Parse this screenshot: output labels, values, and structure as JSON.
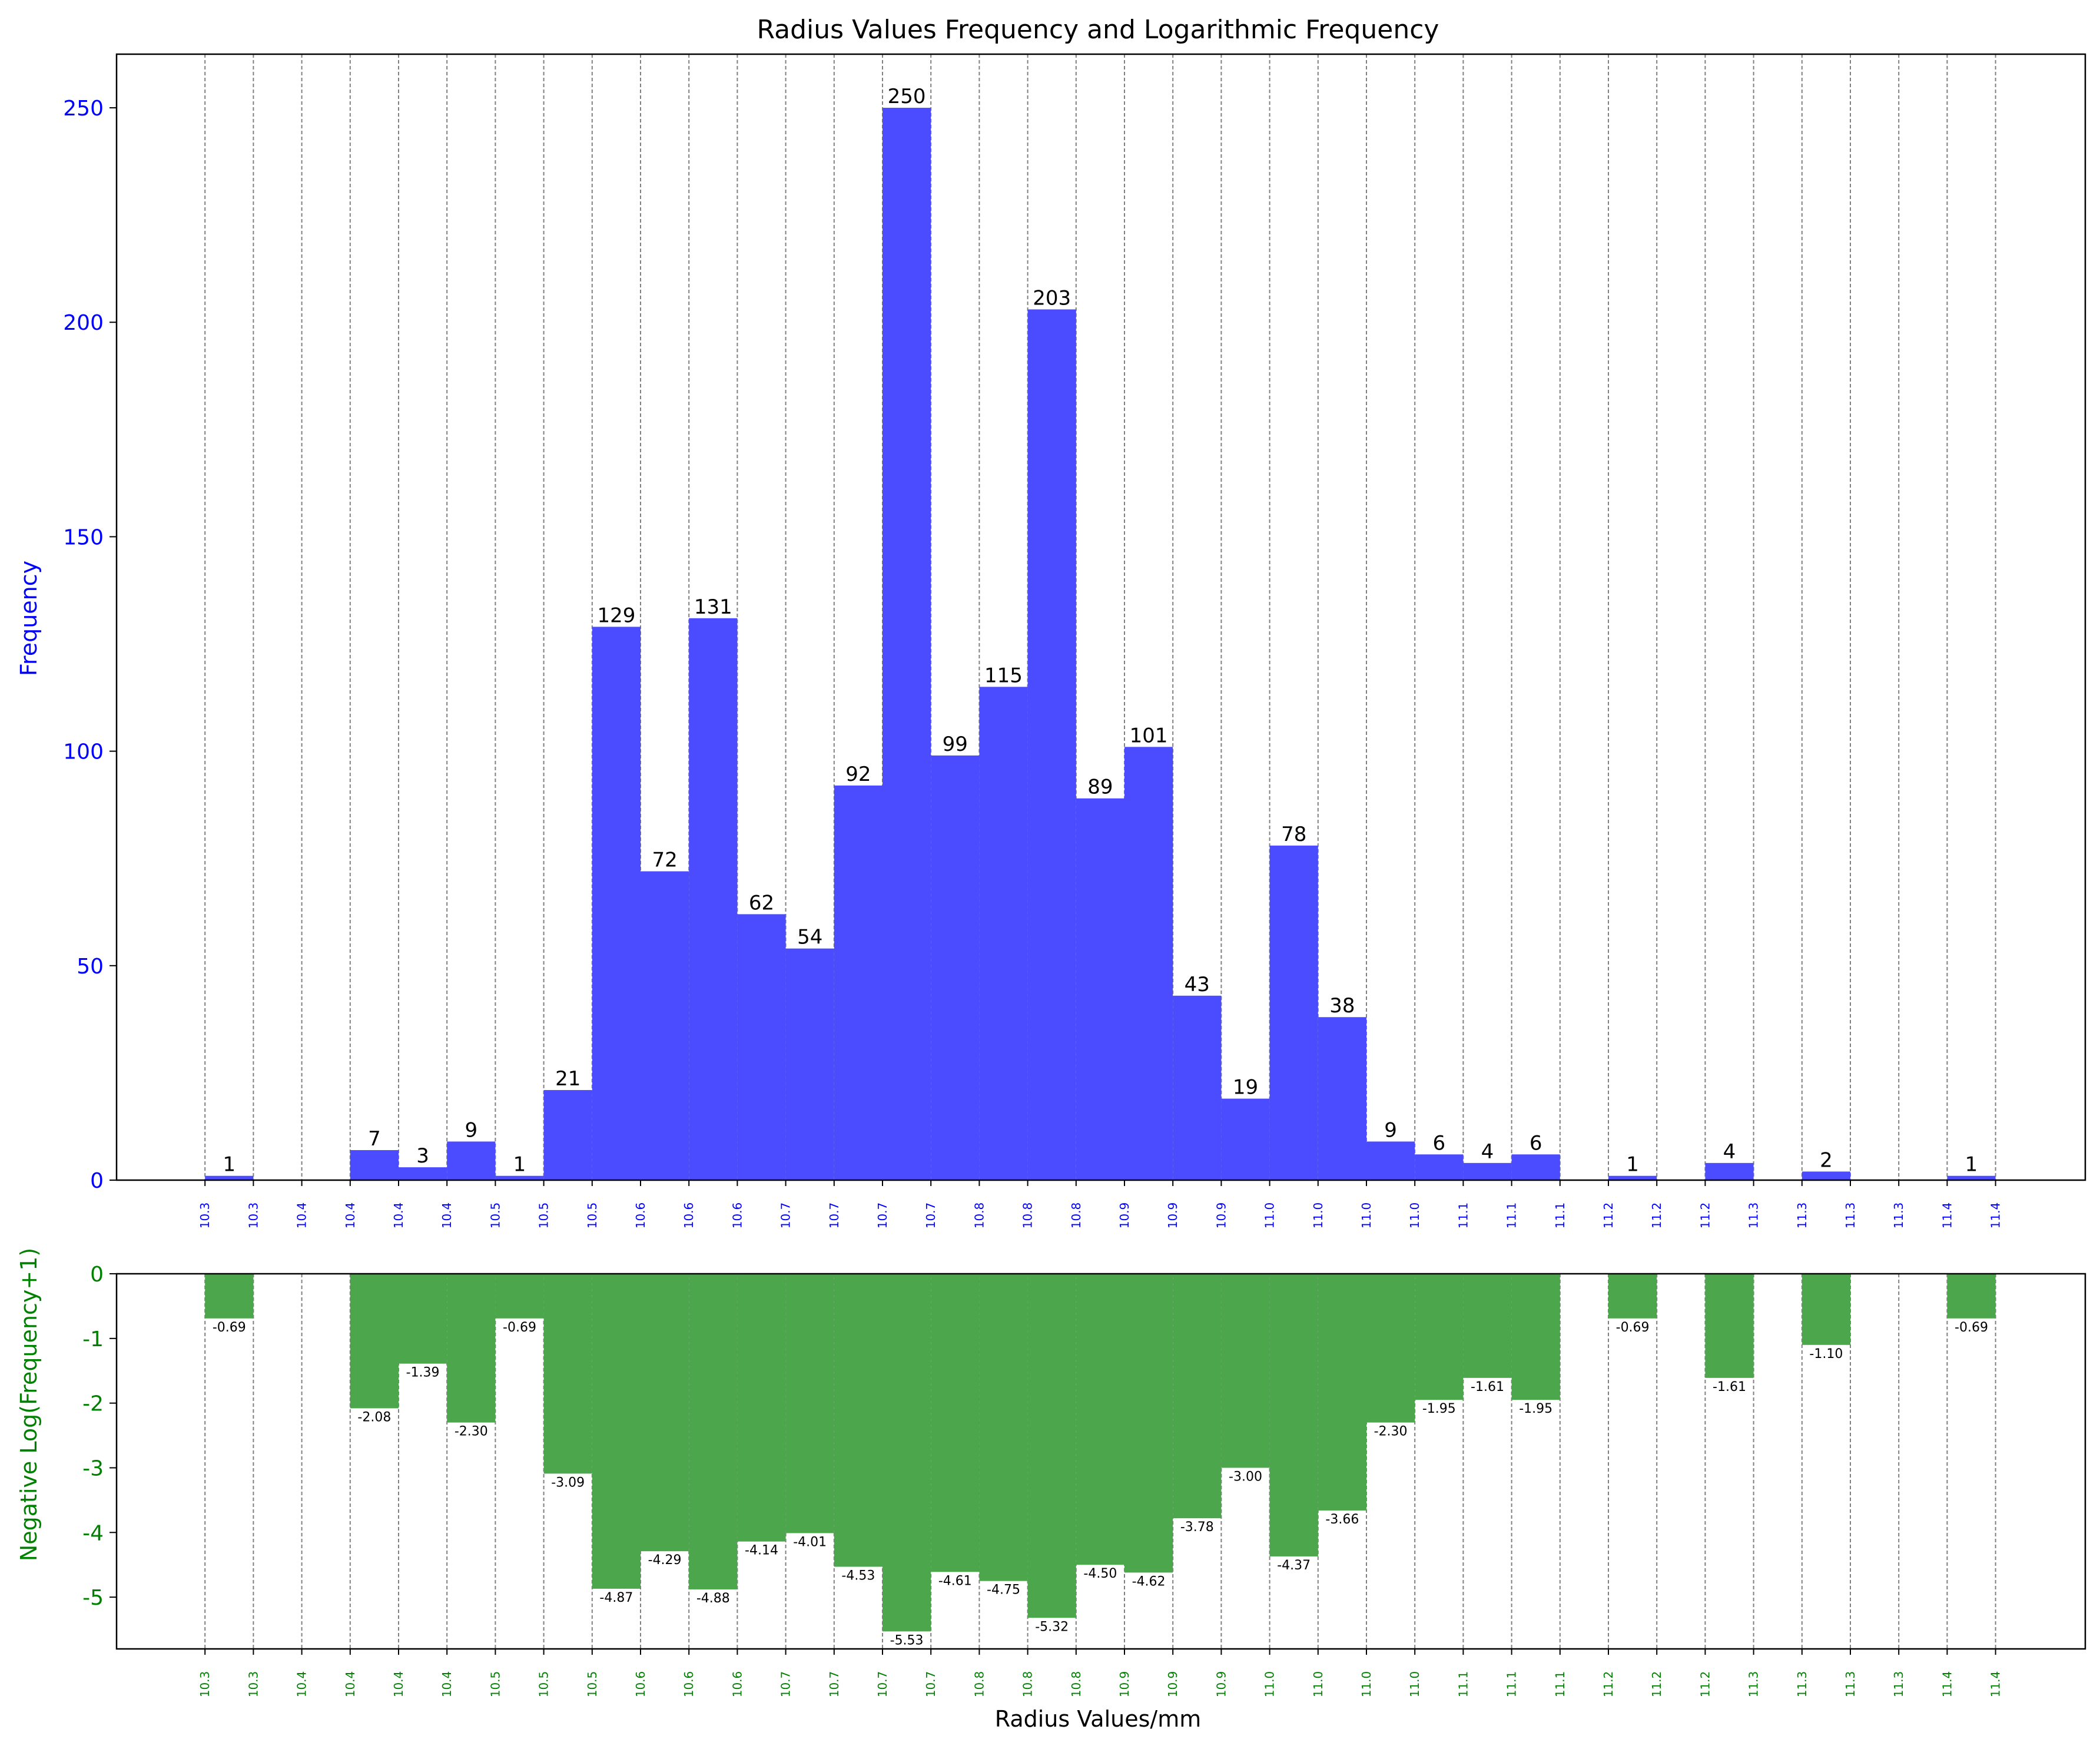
{
  "chart_data": [
    {
      "type": "bar",
      "title": "Radius Values Frequency and Logarithmic Frequency",
      "xlabel": "",
      "ylabel": "Frequency",
      "ylim": [
        0,
        262.5
      ],
      "yticks": [
        0,
        50,
        100,
        150,
        200,
        250
      ],
      "x_tick_labels": [
        "10.3",
        "10.3",
        "10.4",
        "10.4",
        "10.4",
        "10.4",
        "10.5",
        "10.5",
        "10.5",
        "10.6",
        "10.6",
        "10.6",
        "10.7",
        "10.7",
        "10.7",
        "10.7",
        "10.8",
        "10.8",
        "10.8",
        "10.9",
        "10.9",
        "10.9",
        "11.0",
        "11.0",
        "11.0",
        "11.0",
        "11.1",
        "11.1",
        "11.1",
        "11.2",
        "11.2",
        "11.2",
        "11.3",
        "11.3",
        "11.3",
        "11.3",
        "11.4",
        "11.4"
      ],
      "grid": "vertical dashed at bin edges",
      "values": [
        1,
        0,
        0,
        7,
        3,
        9,
        1,
        21,
        129,
        72,
        131,
        62,
        54,
        92,
        250,
        99,
        115,
        203,
        89,
        101,
        43,
        19,
        78,
        38,
        9,
        6,
        4,
        6,
        0,
        1,
        0,
        4,
        0,
        2,
        0,
        0,
        1
      ],
      "data_labels": [
        "1",
        "",
        "",
        "7",
        "3",
        "9",
        "1",
        "21",
        "129",
        "72",
        "131",
        "62",
        "54",
        "92",
        "250",
        "99",
        "115",
        "203",
        "89",
        "101",
        "43",
        "19",
        "78",
        "38",
        "9",
        "6",
        "4",
        "6",
        "",
        "1",
        "",
        "4",
        "",
        "2",
        "",
        "",
        "1"
      ],
      "colors": {
        "bars": "#4b4bff",
        "axis_labels": "#0000ff"
      }
    },
    {
      "type": "bar",
      "title": "",
      "xlabel": "Radius Values/mm",
      "ylabel": "Negative Log(Frequency+1)",
      "ylim": [
        -5.8,
        0
      ],
      "yticks": [
        0,
        -1,
        -2,
        -3,
        -4,
        -5
      ],
      "x_tick_labels": [
        "10.3",
        "10.3",
        "10.4",
        "10.4",
        "10.4",
        "10.4",
        "10.5",
        "10.5",
        "10.5",
        "10.6",
        "10.6",
        "10.6",
        "10.7",
        "10.7",
        "10.7",
        "10.7",
        "10.8",
        "10.8",
        "10.8",
        "10.9",
        "10.9",
        "10.9",
        "11.0",
        "11.0",
        "11.0",
        "11.0",
        "11.1",
        "11.1",
        "11.1",
        "11.2",
        "11.2",
        "11.2",
        "11.3",
        "11.3",
        "11.3",
        "11.3",
        "11.4",
        "11.4"
      ],
      "grid": "vertical dashed at bin edges",
      "values": [
        -0.69,
        0,
        0,
        -2.08,
        -1.39,
        -2.3,
        -0.69,
        -3.09,
        -4.87,
        -4.29,
        -4.88,
        -4.14,
        -4.01,
        -4.53,
        -5.53,
        -4.61,
        -4.75,
        -5.32,
        -4.5,
        -4.62,
        -3.78,
        -3.0,
        -4.37,
        -3.66,
        -2.3,
        -1.95,
        -1.61,
        -1.95,
        0,
        -0.69,
        0,
        -1.61,
        0,
        -1.1,
        0,
        0,
        -0.69
      ],
      "data_labels": [
        "-0.69",
        "",
        "",
        "-2.08",
        "-1.39",
        "-2.30",
        "-0.69",
        "-3.09",
        "-4.87",
        "-4.29",
        "-4.88",
        "-4.14",
        "-4.01",
        "-4.53",
        "-5.53",
        "-4.61",
        "-4.75",
        "-5.32",
        "-4.50",
        "-4.62",
        "-3.78",
        "-3.00",
        "-4.37",
        "-3.66",
        "-2.30",
        "-1.95",
        "-1.61",
        "-1.95",
        "",
        "-0.69",
        "",
        "-1.61",
        "",
        "-1.10",
        "",
        "",
        "-0.69"
      ],
      "colors": {
        "bars": "#4ca64c",
        "axis_labels": "#008000"
      }
    }
  ]
}
